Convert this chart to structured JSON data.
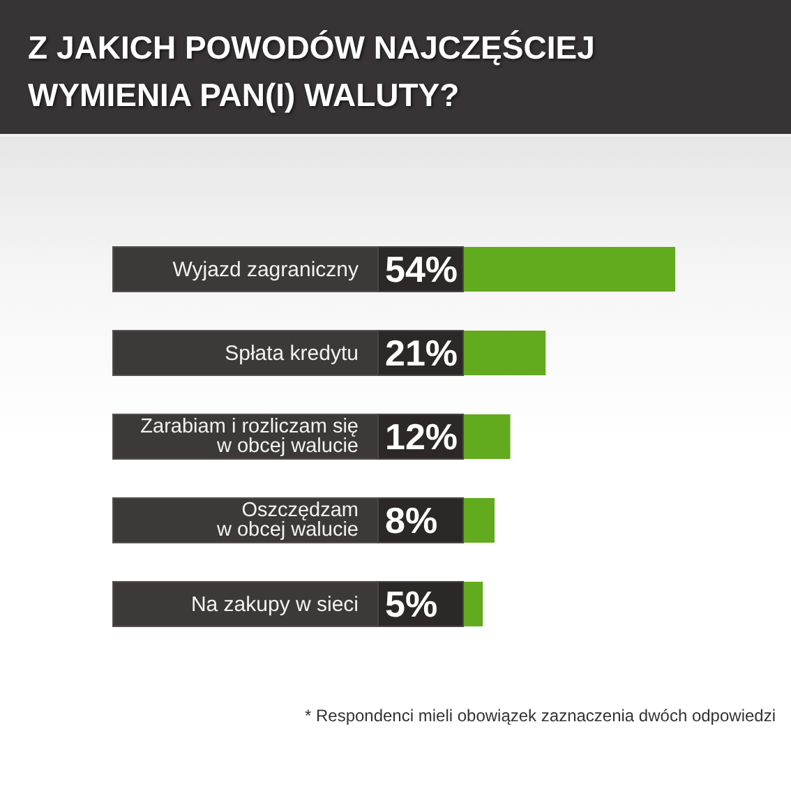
{
  "chart_data": {
    "type": "bar",
    "orientation": "horizontal",
    "title": "Z JAKICH POWODÓW NAJCZĘŚCIEJ WYMIENIA PAN(I) WALUTY?",
    "categories": [
      "Wyjazd zagraniczny",
      "Spłata kredytu",
      "Zarabiam i rozliczam się\nw obcej walucie",
      "Oszczędzam\nw obcej walucie",
      "Na zakupy w sieci"
    ],
    "values": [
      54,
      21,
      12,
      8,
      5
    ],
    "color": "#62aa1e",
    "value_labels": [
      "54%",
      "21%",
      "12%",
      "8%",
      "5%"
    ],
    "tick_labels": "y",
    "annotations": [
      "* Respondenci mieli obowiązek zaznaczenia dwóch odpowiedzi"
    ]
  }
}
